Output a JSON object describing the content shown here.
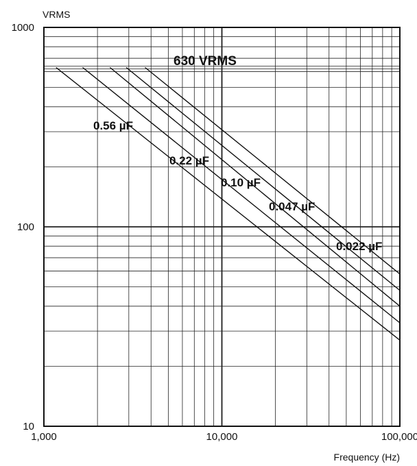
{
  "chart_data": {
    "type": "line",
    "title": "",
    "xlabel": "Frequency (Hz)",
    "ylabel": "VRMS",
    "xscale": "log",
    "yscale": "log",
    "xlim": [
      1000,
      100000
    ],
    "ylim": [
      10,
      1000
    ],
    "grid": true,
    "x_ticks": [
      "1,000",
      "10,000",
      "100,000"
    ],
    "y_ticks": [
      "10",
      "100",
      "1000"
    ],
    "annotation": "630 VRMS",
    "series": [
      {
        "name": "0.56 µF",
        "x": [
          1170,
          100000
        ],
        "y": [
          630,
          27
        ]
      },
      {
        "name": "0.22 µF",
        "x": [
          1650,
          100000
        ],
        "y": [
          630,
          33
        ]
      },
      {
        "name": "0.10 µF",
        "x": [
          2350,
          100000
        ],
        "y": [
          630,
          40
        ]
      },
      {
        "name": "0.047 µF",
        "x": [
          2900,
          100000
        ],
        "y": [
          630,
          48
        ]
      },
      {
        "name": "0.022 µF",
        "x": [
          3700,
          100000
        ],
        "y": [
          630,
          58
        ]
      }
    ]
  }
}
